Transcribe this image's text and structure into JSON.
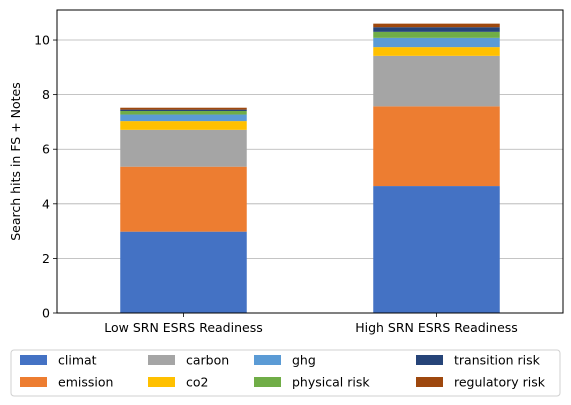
{
  "chart_data": {
    "type": "bar",
    "stacked": true,
    "title": "",
    "xlabel": "",
    "ylabel": "Search hits in FS + Notes",
    "ylim": [
      0,
      11.1
    ],
    "yticks": [
      0,
      2,
      4,
      6,
      8,
      10
    ],
    "grid": "y",
    "legend_position": "bottom",
    "categories": [
      "Low SRN ESRS Readiness",
      "High SRN ESRS Readiness"
    ],
    "series": [
      {
        "name": "climat",
        "color": "#4472C4",
        "values": [
          2.98,
          4.65
        ]
      },
      {
        "name": "emission",
        "color": "#ED7D31",
        "values": [
          2.38,
          2.92
        ]
      },
      {
        "name": "carbon",
        "color": "#A5A5A5",
        "values": [
          1.35,
          1.85
        ]
      },
      {
        "name": "co2",
        "color": "#FFC000",
        "values": [
          0.32,
          0.32
        ]
      },
      {
        "name": "ghg",
        "color": "#5B9BD5",
        "values": [
          0.24,
          0.34
        ]
      },
      {
        "name": "physical risk",
        "color": "#70AD47",
        "values": [
          0.13,
          0.22
        ]
      },
      {
        "name": "transition risk",
        "color": "#264478",
        "values": [
          0.05,
          0.17
        ]
      },
      {
        "name": "regulatory risk",
        "color": "#9E480E",
        "values": [
          0.07,
          0.13
        ]
      }
    ]
  }
}
